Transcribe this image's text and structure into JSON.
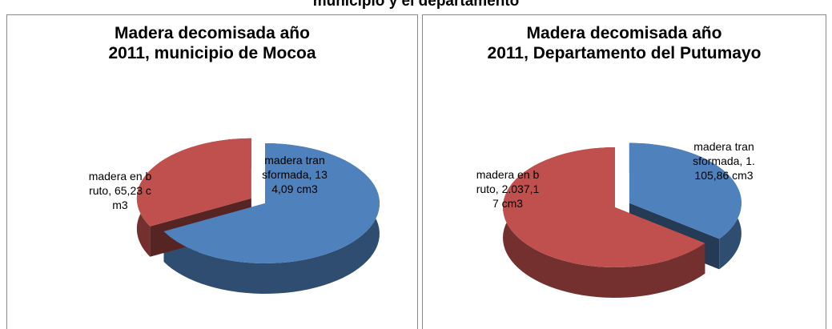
{
  "page_title": "municipio y el departamento",
  "chart_data": [
    {
      "type": "pie",
      "title": "Madera decomisada año\n2011, municipio de Mocoa",
      "values": [
        134.09,
        65.23
      ],
      "value_labels": [
        "madera transformada, 134,09 cm3",
        "madera en bruto, 65,23 cm3"
      ],
      "colors": [
        "#4f81bd",
        "#c0504d"
      ],
      "exploded": 1
    },
    {
      "type": "pie",
      "title": "Madera decomisada año\n2011, Departamento del Putumayo",
      "values": [
        1105.86,
        2037.17
      ],
      "value_labels": [
        "madera transformada, 1.105,86 cm3",
        "madera en bruto, 2.037,17 cm3"
      ],
      "colors": [
        "#4f81bd",
        "#c0504d"
      ],
      "exploded": 0
    }
  ]
}
